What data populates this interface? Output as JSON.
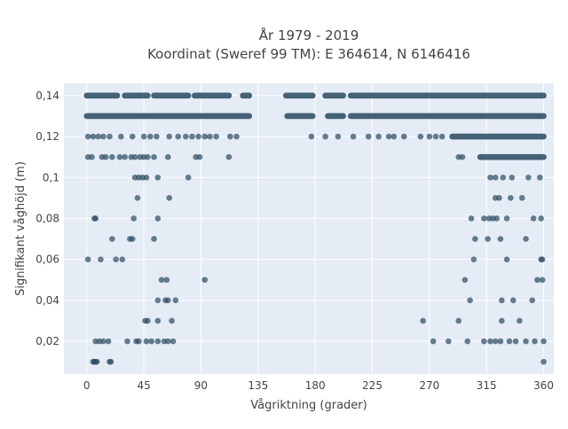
{
  "chart_data": {
    "type": "scatter",
    "title": "År 1979 - 2019",
    "subtitle": "Koordinat (Sweref 99 TM): E 364614, N 6146416",
    "xlabel": "Vågriktning (grader)",
    "ylabel": "Signifikant våghöjd (m)",
    "xlim": [
      -18,
      368
    ],
    "ylim": [
      0.004,
      0.146
    ],
    "x_ticks": [
      0,
      45,
      90,
      135,
      180,
      225,
      270,
      315,
      360
    ],
    "x_tick_labels": [
      "0",
      "45",
      "90",
      "135",
      "180",
      "225",
      "270",
      "315",
      "360"
    ],
    "y_ticks": [
      0.02,
      0.04,
      0.06,
      0.08,
      0.1,
      0.12,
      0.14
    ],
    "y_tick_labels": [
      "0,02",
      "0,04",
      "0,06",
      "0,08",
      "0,1",
      "0,12",
      "0,14"
    ],
    "grid": true,
    "marker_color": "#2e4d63",
    "plot_bg": "#e5ecf6",
    "dense_bands": [
      {
        "y": 0.14,
        "ranges": [
          [
            0,
            24
          ],
          [
            30,
            48
          ],
          [
            53,
            80
          ],
          [
            85,
            112
          ],
          [
            123,
            128
          ],
          [
            157,
            178
          ],
          [
            188,
            202
          ],
          [
            208,
            360
          ]
        ]
      },
      {
        "y": 0.13,
        "ranges": [
          [
            0,
            128
          ],
          [
            158,
            178
          ],
          [
            190,
            202
          ],
          [
            208,
            360
          ]
        ]
      },
      {
        "y": 0.12,
        "ranges": [
          [
            288,
            360
          ]
        ]
      },
      {
        "y": 0.11,
        "ranges": [
          [
            310,
            360
          ]
        ]
      }
    ],
    "points": [
      {
        "x": 1,
        "y": 0.12
      },
      {
        "x": 5,
        "y": 0.12
      },
      {
        "x": 9,
        "y": 0.12
      },
      {
        "x": 13,
        "y": 0.12
      },
      {
        "x": 18,
        "y": 0.12
      },
      {
        "x": 27,
        "y": 0.12
      },
      {
        "x": 36,
        "y": 0.12
      },
      {
        "x": 45,
        "y": 0.12
      },
      {
        "x": 50,
        "y": 0.12
      },
      {
        "x": 55,
        "y": 0.12
      },
      {
        "x": 65,
        "y": 0.12
      },
      {
        "x": 72,
        "y": 0.12
      },
      {
        "x": 78,
        "y": 0.12
      },
      {
        "x": 83,
        "y": 0.12
      },
      {
        "x": 88,
        "y": 0.12
      },
      {
        "x": 93,
        "y": 0.12
      },
      {
        "x": 97,
        "y": 0.12
      },
      {
        "x": 102,
        "y": 0.12
      },
      {
        "x": 113,
        "y": 0.12
      },
      {
        "x": 118,
        "y": 0.12
      },
      {
        "x": 177,
        "y": 0.12
      },
      {
        "x": 188,
        "y": 0.12
      },
      {
        "x": 198,
        "y": 0.12
      },
      {
        "x": 210,
        "y": 0.12
      },
      {
        "x": 222,
        "y": 0.12
      },
      {
        "x": 230,
        "y": 0.12
      },
      {
        "x": 238,
        "y": 0.12
      },
      {
        "x": 242,
        "y": 0.12
      },
      {
        "x": 250,
        "y": 0.12
      },
      {
        "x": 263,
        "y": 0.12
      },
      {
        "x": 270,
        "y": 0.12
      },
      {
        "x": 275,
        "y": 0.12
      },
      {
        "x": 280,
        "y": 0.12
      },
      {
        "x": 1,
        "y": 0.11
      },
      {
        "x": 4,
        "y": 0.11
      },
      {
        "x": 12,
        "y": 0.11
      },
      {
        "x": 15,
        "y": 0.11
      },
      {
        "x": 20,
        "y": 0.11
      },
      {
        "x": 26,
        "y": 0.11
      },
      {
        "x": 30,
        "y": 0.11
      },
      {
        "x": 35,
        "y": 0.11
      },
      {
        "x": 38,
        "y": 0.11
      },
      {
        "x": 42,
        "y": 0.11
      },
      {
        "x": 45,
        "y": 0.11
      },
      {
        "x": 48,
        "y": 0.11
      },
      {
        "x": 53,
        "y": 0.11
      },
      {
        "x": 64,
        "y": 0.11
      },
      {
        "x": 86,
        "y": 0.11
      },
      {
        "x": 89,
        "y": 0.11
      },
      {
        "x": 112,
        "y": 0.11
      },
      {
        "x": 293,
        "y": 0.11
      },
      {
        "x": 296,
        "y": 0.11
      },
      {
        "x": 38,
        "y": 0.1
      },
      {
        "x": 41,
        "y": 0.1
      },
      {
        "x": 44,
        "y": 0.1
      },
      {
        "x": 47,
        "y": 0.1
      },
      {
        "x": 56,
        "y": 0.1
      },
      {
        "x": 80,
        "y": 0.1
      },
      {
        "x": 318,
        "y": 0.1
      },
      {
        "x": 322,
        "y": 0.1
      },
      {
        "x": 328,
        "y": 0.1
      },
      {
        "x": 335,
        "y": 0.1
      },
      {
        "x": 348,
        "y": 0.1
      },
      {
        "x": 357,
        "y": 0.1
      },
      {
        "x": 40,
        "y": 0.09
      },
      {
        "x": 65,
        "y": 0.09
      },
      {
        "x": 322,
        "y": 0.09
      },
      {
        "x": 325,
        "y": 0.09
      },
      {
        "x": 334,
        "y": 0.09
      },
      {
        "x": 343,
        "y": 0.09
      },
      {
        "x": 6,
        "y": 0.08
      },
      {
        "x": 7,
        "y": 0.08
      },
      {
        "x": 37,
        "y": 0.08
      },
      {
        "x": 56,
        "y": 0.08
      },
      {
        "x": 303,
        "y": 0.08
      },
      {
        "x": 313,
        "y": 0.08
      },
      {
        "x": 317,
        "y": 0.08
      },
      {
        "x": 320,
        "y": 0.08
      },
      {
        "x": 323,
        "y": 0.08
      },
      {
        "x": 331,
        "y": 0.08
      },
      {
        "x": 352,
        "y": 0.08
      },
      {
        "x": 358,
        "y": 0.08
      },
      {
        "x": 20,
        "y": 0.07
      },
      {
        "x": 34,
        "y": 0.07
      },
      {
        "x": 36,
        "y": 0.07
      },
      {
        "x": 53,
        "y": 0.07
      },
      {
        "x": 306,
        "y": 0.07
      },
      {
        "x": 316,
        "y": 0.07
      },
      {
        "x": 326,
        "y": 0.07
      },
      {
        "x": 346,
        "y": 0.07
      },
      {
        "x": 1,
        "y": 0.06
      },
      {
        "x": 11,
        "y": 0.06
      },
      {
        "x": 23,
        "y": 0.06
      },
      {
        "x": 28,
        "y": 0.06
      },
      {
        "x": 305,
        "y": 0.06
      },
      {
        "x": 331,
        "y": 0.06
      },
      {
        "x": 358,
        "y": 0.06
      },
      {
        "x": 359,
        "y": 0.06
      },
      {
        "x": 59,
        "y": 0.05
      },
      {
        "x": 63,
        "y": 0.05
      },
      {
        "x": 93,
        "y": 0.05
      },
      {
        "x": 298,
        "y": 0.05
      },
      {
        "x": 355,
        "y": 0.05
      },
      {
        "x": 359,
        "y": 0.05
      },
      {
        "x": 56,
        "y": 0.04
      },
      {
        "x": 62,
        "y": 0.04
      },
      {
        "x": 64,
        "y": 0.04
      },
      {
        "x": 70,
        "y": 0.04
      },
      {
        "x": 302,
        "y": 0.04
      },
      {
        "x": 327,
        "y": 0.04
      },
      {
        "x": 336,
        "y": 0.04
      },
      {
        "x": 351,
        "y": 0.04
      },
      {
        "x": 46,
        "y": 0.03
      },
      {
        "x": 48,
        "y": 0.03
      },
      {
        "x": 56,
        "y": 0.03
      },
      {
        "x": 67,
        "y": 0.03
      },
      {
        "x": 265,
        "y": 0.03
      },
      {
        "x": 293,
        "y": 0.03
      },
      {
        "x": 327,
        "y": 0.03
      },
      {
        "x": 341,
        "y": 0.03
      },
      {
        "x": 7,
        "y": 0.02
      },
      {
        "x": 10,
        "y": 0.02
      },
      {
        "x": 13,
        "y": 0.02
      },
      {
        "x": 17,
        "y": 0.02
      },
      {
        "x": 32,
        "y": 0.02
      },
      {
        "x": 39,
        "y": 0.02
      },
      {
        "x": 41,
        "y": 0.02
      },
      {
        "x": 47,
        "y": 0.02
      },
      {
        "x": 51,
        "y": 0.02
      },
      {
        "x": 56,
        "y": 0.02
      },
      {
        "x": 61,
        "y": 0.02
      },
      {
        "x": 64,
        "y": 0.02
      },
      {
        "x": 68,
        "y": 0.02
      },
      {
        "x": 273,
        "y": 0.02
      },
      {
        "x": 285,
        "y": 0.02
      },
      {
        "x": 300,
        "y": 0.02
      },
      {
        "x": 313,
        "y": 0.02
      },
      {
        "x": 318,
        "y": 0.02
      },
      {
        "x": 322,
        "y": 0.02
      },
      {
        "x": 326,
        "y": 0.02
      },
      {
        "x": 333,
        "y": 0.02
      },
      {
        "x": 338,
        "y": 0.02
      },
      {
        "x": 346,
        "y": 0.02
      },
      {
        "x": 353,
        "y": 0.02
      },
      {
        "x": 360,
        "y": 0.02
      },
      {
        "x": 5,
        "y": 0.01
      },
      {
        "x": 6,
        "y": 0.01
      },
      {
        "x": 7,
        "y": 0.01
      },
      {
        "x": 8,
        "y": 0.01
      },
      {
        "x": 18,
        "y": 0.01
      },
      {
        "x": 19,
        "y": 0.01
      },
      {
        "x": 360,
        "y": 0.01
      }
    ]
  }
}
